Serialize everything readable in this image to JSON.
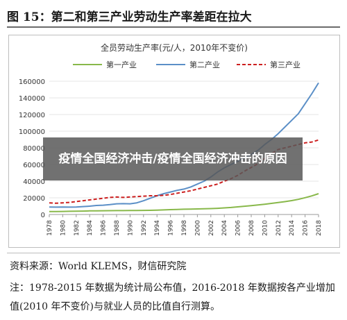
{
  "figure": {
    "title": "图 15：第二和第三产业劳动生产率差距在拉大",
    "source": "资料来源：World KLEMS，财信研究院",
    "note": "注：1978-2015 年数据为统计局公布值，2016-2018 年数据按各产业增加值(2010 年不变价)与就业人员的比值自行测算。"
  },
  "overlay": {
    "text": "疫情全国经济冲击/疫情全国经济冲击的原因"
  },
  "colors": {
    "primary": "#88b84a",
    "secondary": "#5b8fc7",
    "tertiary": "#cc1f1f",
    "grid": "#e6e6e6",
    "axis": "#9a9a9a",
    "text": "#333333"
  },
  "chart_data": {
    "type": "line",
    "title": "全员劳动生产率(元/人，2010年不变价)",
    "xlabel": "",
    "ylabel": "",
    "ylim": [
      0,
      160000
    ],
    "yticks": [
      0,
      20000,
      40000,
      60000,
      80000,
      100000,
      120000,
      140000,
      160000
    ],
    "ytick_labels": [
      "0",
      "20000",
      "40000",
      "60000",
      "80000",
      "100000",
      "120000",
      "140000",
      "160000"
    ],
    "xlim": [
      1978,
      2018
    ],
    "xticks": [
      1978,
      1980,
      1982,
      1984,
      1986,
      1988,
      1990,
      1992,
      1994,
      1996,
      1998,
      2000,
      2002,
      2004,
      2006,
      2008,
      2010,
      2012,
      2014,
      2016,
      2018
    ],
    "xtick_labels": [
      "1978",
      "1980",
      "1982",
      "1984",
      "1986",
      "1988",
      "1990",
      "1992",
      "1994",
      "1996",
      "1998",
      "2000",
      "2002",
      "2004",
      "2006",
      "2008",
      "2010",
      "2012",
      "2014",
      "2016",
      "2018"
    ],
    "grid": true,
    "legend_position": "top",
    "x": [
      1978,
      1979,
      1980,
      1981,
      1982,
      1983,
      1984,
      1985,
      1986,
      1987,
      1988,
      1989,
      1990,
      1991,
      1992,
      1993,
      1994,
      1995,
      1996,
      1997,
      1998,
      1999,
      2000,
      2001,
      2002,
      2003,
      2004,
      2005,
      2006,
      2007,
      2008,
      2009,
      2010,
      2011,
      2012,
      2013,
      2014,
      2015,
      2016,
      2017,
      2018
    ],
    "series": [
      {
        "name": "第一产业",
        "style": "solid",
        "color": "#88b84a",
        "values": [
          3500,
          3600,
          3700,
          3800,
          4000,
          4100,
          4300,
          4400,
          4500,
          4600,
          4700,
          4700,
          4800,
          4800,
          4900,
          5000,
          5200,
          5500,
          5800,
          6000,
          6300,
          6500,
          6700,
          6900,
          7100,
          7400,
          7900,
          8400,
          9200,
          9900,
          10700,
          11500,
          12300,
          13300,
          14300,
          15400,
          16700,
          18200,
          20200,
          22300,
          25000
        ]
      },
      {
        "name": "第二产业",
        "style": "solid",
        "color": "#5b8fc7",
        "values": [
          9000,
          8800,
          9000,
          8800,
          9000,
          9500,
          10000,
          10800,
          11200,
          11800,
          12800,
          13000,
          12800,
          14000,
          16500,
          19500,
          22500,
          25000,
          27000,
          29000,
          30500,
          33000,
          36500,
          40000,
          45000,
          51000,
          56000,
          60000,
          64000,
          68000,
          72000,
          77000,
          84000,
          90000,
          97000,
          105000,
          113000,
          121000,
          133000,
          145000,
          158000
        ]
      },
      {
        "name": "第三产业",
        "style": "dashed",
        "color": "#cc1f1f",
        "values": [
          14000,
          13500,
          14000,
          14500,
          15500,
          16500,
          17500,
          18500,
          19500,
          20500,
          21000,
          20500,
          21000,
          21500,
          22000,
          22500,
          22500,
          23000,
          24000,
          25500,
          27000,
          28500,
          30500,
          32500,
          34500,
          36500,
          40000,
          43000,
          47000,
          52000,
          56500,
          61000,
          67000,
          73000,
          78000,
          80000,
          82000,
          84000,
          86000,
          87000,
          89500
        ]
      }
    ]
  }
}
